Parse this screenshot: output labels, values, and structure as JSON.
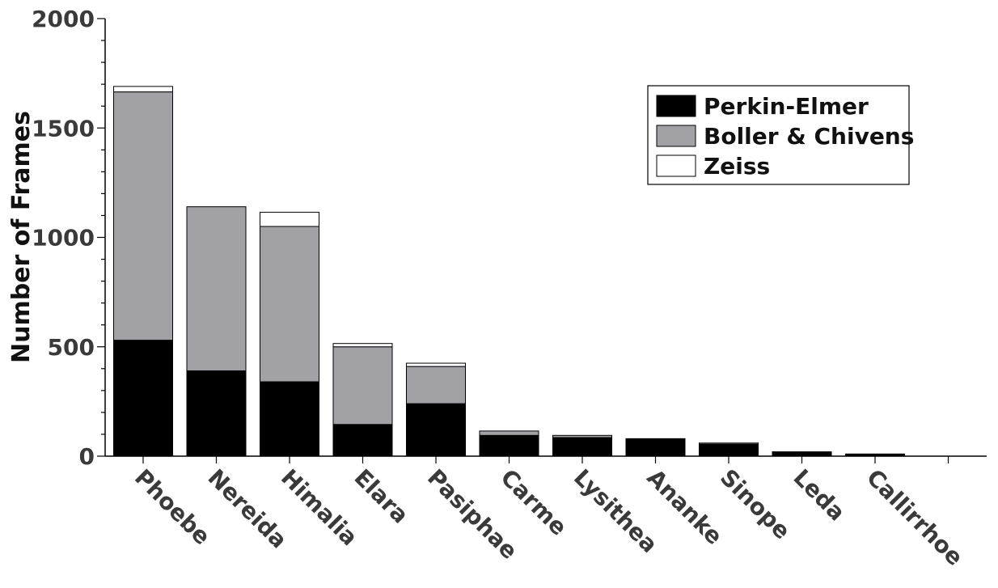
{
  "chart_data": {
    "type": "bar",
    "stacked": true,
    "title": "",
    "xlabel": "",
    "ylabel": "Number of Frames",
    "ylim": [
      0,
      2000
    ],
    "yticks": [
      0,
      500,
      1000,
      1500,
      2000
    ],
    "grid": false,
    "legend_position": "top-right",
    "categories": [
      "Phoebe",
      "Nereida",
      "Himalia",
      "Elara",
      "Pasiphae",
      "Carme",
      "Lysithea",
      "Ananke",
      "Sinope",
      "Leda",
      "Callirrhoe",
      ""
    ],
    "series": [
      {
        "name": "Perkin-Elmer",
        "color": "#000000",
        "values": [
          530,
          390,
          340,
          145,
          240,
          95,
          85,
          80,
          55,
          20,
          10,
          0
        ]
      },
      {
        "name": "Boller & Chivens",
        "color": "#a2a1a5",
        "values": [
          1135,
          750,
          710,
          355,
          170,
          20,
          10,
          0,
          5,
          0,
          0,
          0
        ]
      },
      {
        "name": "Zeiss",
        "color": "#ffffff",
        "values": [
          25,
          0,
          65,
          15,
          15,
          0,
          0,
          0,
          0,
          0,
          0,
          0
        ]
      }
    ]
  }
}
